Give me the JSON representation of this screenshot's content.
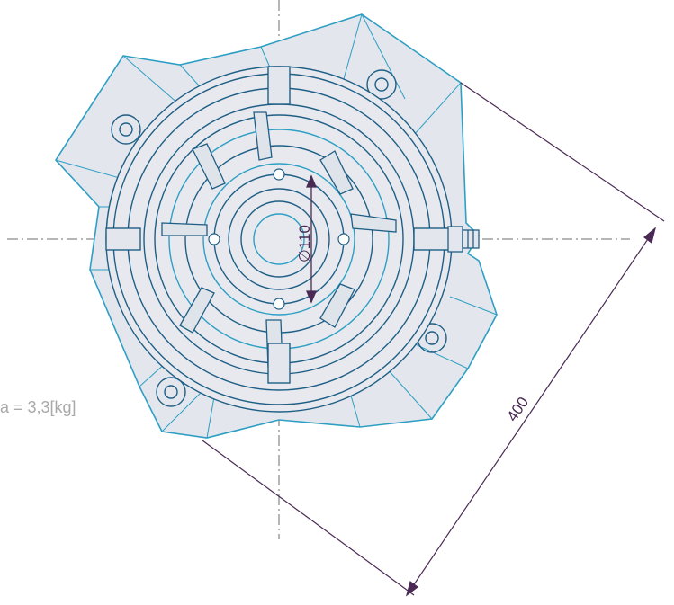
{
  "annotations": {
    "diameter": "∅110",
    "overall": "400",
    "mass": "a = 3,3[kg]"
  },
  "colors": {
    "outline": "#2e9fc4",
    "outline_dark": "#1f5f86",
    "fill": "#e3e6ec",
    "dimension": "#4a2a55",
    "centerline": "#6c6c6c"
  }
}
